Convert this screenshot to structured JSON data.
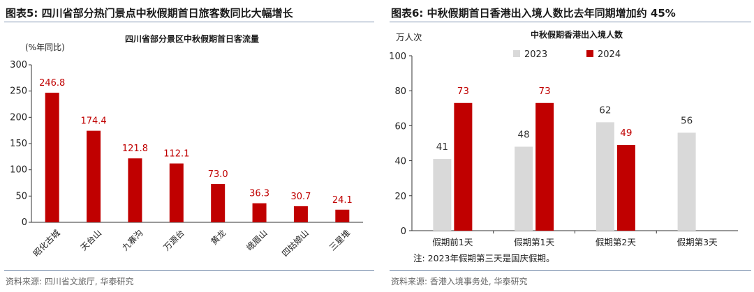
{
  "left": {
    "figure_title": "图表5:  四川省部分热门景点中秋假期首日旅客数同比大幅增长",
    "source": "资料来源: 四川省文旅厅, 华泰研究",
    "colors": {
      "bar": "#c00000",
      "label": "#c00000"
    },
    "chart_data": {
      "type": "bar",
      "title": "四川省部分景区中秋假期首日客流量",
      "ylabel": "(%年同比)",
      "xlabel": "",
      "categories": [
        "昭化古城",
        "天台山",
        "九寨沟",
        "万源台",
        "黄龙",
        "峨眉山",
        "四姑娘山",
        "三星堆"
      ],
      "values": [
        246.8,
        174.4,
        121.8,
        112.1,
        73.0,
        36.3,
        30.7,
        24.1
      ],
      "value_labels": [
        "246.8",
        "174.4",
        "121.8",
        "112.1",
        "73.0",
        "36.3",
        "30.7",
        "24.1"
      ],
      "ylim": [
        0,
        300
      ],
      "yticks": [
        "0",
        "50",
        "100",
        "150",
        "200",
        "250",
        "300"
      ],
      "grid": false,
      "legend": "none"
    }
  },
  "right": {
    "figure_title": "图表6:  中秋假期首日香港出入境人数比去年同期增加约 45%",
    "source": "资料来源: 香港入境事务处, 华泰研究",
    "note": "注: 2023年假期第三天是国庆假期。",
    "colors": {
      "s2023": "#d9d9d9",
      "s2024": "#c00000",
      "label2023": "#333333",
      "label2024": "#c00000"
    },
    "chart_data": {
      "type": "bar",
      "title": "中秋假期香港出入境人数",
      "ylabel": "万人次",
      "xlabel": "",
      "categories": [
        "假期前1天",
        "假期第1天",
        "假期第2天",
        "假期第3天"
      ],
      "series": [
        {
          "name": "2023",
          "values": [
            41,
            48,
            62,
            56
          ],
          "labels": [
            "41",
            "48",
            "62",
            "56"
          ]
        },
        {
          "name": "2024",
          "values": [
            73,
            73,
            49,
            null
          ],
          "labels": [
            "73",
            "73",
            "49",
            ""
          ]
        }
      ],
      "ylim": [
        0,
        100
      ],
      "yticks": [
        "0",
        "20",
        "40",
        "60",
        "80",
        "100"
      ],
      "grid": false,
      "legend": "top-left"
    }
  }
}
